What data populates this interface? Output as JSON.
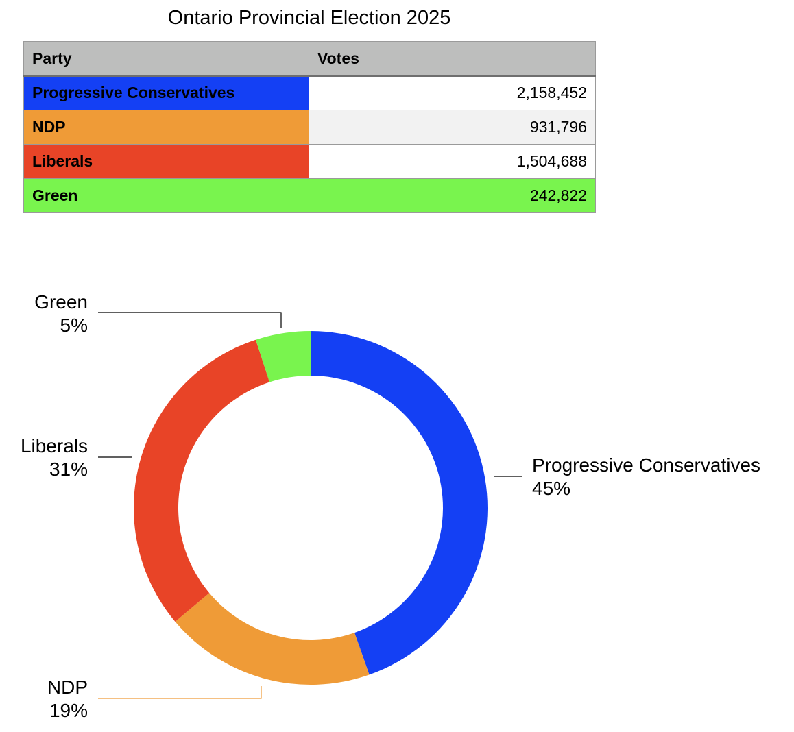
{
  "table": {
    "headers": [
      "Party",
      "Votes"
    ],
    "rows": [
      {
        "party": "Progressive Conservatives",
        "votes": "2,158,452",
        "party_color": "#1440F4",
        "value_bg": "#ffffff"
      },
      {
        "party": "NDP",
        "votes": "931,796",
        "party_color": "#EF9B37",
        "value_bg": "#f2f2f2"
      },
      {
        "party": "Liberals",
        "votes": "1,504,688",
        "party_color": "#E84427",
        "value_bg": "#ffffff"
      },
      {
        "party": "Green",
        "votes": "242,822",
        "party_color": "#79F44E",
        "value_bg": "#79F44E"
      }
    ]
  },
  "chart_data": {
    "type": "pie",
    "style": "donut",
    "title": "Ontario Provincial Election 2025",
    "slices": [
      {
        "label": "Progressive Conservatives",
        "value": 2158452,
        "percent_label": "45%",
        "color": "#1440F4"
      },
      {
        "label": "NDP",
        "value": 931796,
        "percent_label": "19%",
        "color": "#EF9B37"
      },
      {
        "label": "Liberals",
        "value": 1504688,
        "percent_label": "31%",
        "color": "#E84427"
      },
      {
        "label": "Green",
        "value": 242822,
        "percent_label": "5%",
        "color": "#79F44E"
      }
    ],
    "start_angle": "12 o'clock",
    "direction": "clockwise",
    "label_leader_color": "#000000",
    "ndp_leader_color": "#EF9B37"
  }
}
